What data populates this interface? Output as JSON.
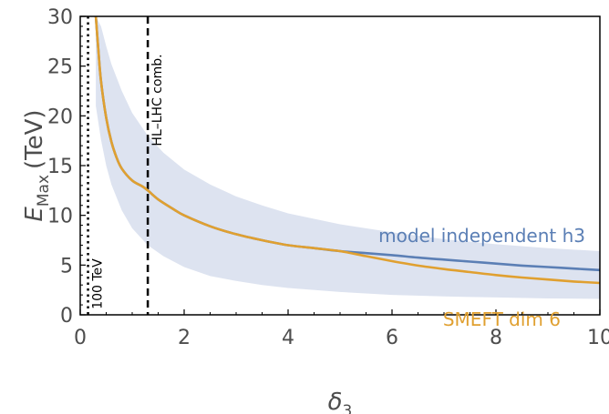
{
  "chart_data": {
    "type": "line",
    "xlabel": "δ3",
    "ylabel": "E_Max (TeV)",
    "ylabel_main": "E",
    "ylabel_sub": "Max",
    "ylabel_unit": "(TeV)",
    "xlabel_main": "δ",
    "xlabel_sub": "3",
    "xlim": [
      0,
      10
    ],
    "ylim": [
      0,
      30
    ],
    "xticks": [
      0,
      2,
      4,
      6,
      8,
      10
    ],
    "yticks": [
      0,
      5,
      10,
      15,
      20,
      25,
      30
    ],
    "grid": false,
    "colors": {
      "model_independent": "#5b7fb5",
      "smeft": "#e0a030",
      "band": "#dde3f0",
      "frame": "#000000",
      "text": "#4d4d4d"
    },
    "band": {
      "x": [
        0.3,
        0.4,
        0.5,
        0.6,
        0.8,
        1.0,
        1.3,
        1.6,
        2.0,
        2.5,
        3.0,
        3.5,
        4.0,
        5.0,
        6.0,
        7.0,
        8.0,
        9.0,
        10.0
      ],
      "upper": [
        30.0,
        29.0,
        27.0,
        25.2,
        22.5,
        20.3,
        18.0,
        16.3,
        14.6,
        13.1,
        11.9,
        11.0,
        10.2,
        9.1,
        8.3,
        7.6,
        7.1,
        6.7,
        6.4
      ],
      "lower": [
        21.0,
        17.6,
        15.0,
        13.1,
        10.5,
        8.7,
        7.0,
        5.9,
        4.8,
        3.9,
        3.4,
        3.0,
        2.7,
        2.3,
        2.0,
        1.85,
        1.75,
        1.65,
        1.6
      ]
    },
    "series": [
      {
        "name": "model independent h3",
        "color": "#5b7fb5",
        "x": [
          0.3,
          0.35,
          0.4,
          0.5,
          0.6,
          0.7,
          0.8,
          1.0,
          1.2,
          1.3,
          1.5,
          1.8,
          2.0,
          2.5,
          3.0,
          3.5,
          4.0,
          4.5,
          5.0,
          5.5,
          6.0,
          6.5,
          7.0,
          7.5,
          8.0,
          8.5,
          9.0,
          9.5,
          10.0
        ],
        "y": [
          30.0,
          26.5,
          23.5,
          19.8,
          17.4,
          15.8,
          14.7,
          13.5,
          12.9,
          12.5,
          11.6,
          10.6,
          10.0,
          8.9,
          8.1,
          7.5,
          7.0,
          6.7,
          6.4,
          6.2,
          6.0,
          5.75,
          5.55,
          5.35,
          5.15,
          4.95,
          4.8,
          4.65,
          4.5
        ]
      },
      {
        "name": "SMEFT dim 6",
        "color": "#e0a030",
        "x": [
          0.3,
          0.35,
          0.4,
          0.5,
          0.6,
          0.7,
          0.8,
          1.0,
          1.2,
          1.3,
          1.5,
          1.8,
          2.0,
          2.5,
          3.0,
          3.5,
          4.0,
          4.5,
          5.0,
          5.5,
          6.0,
          6.5,
          7.0,
          7.5,
          8.0,
          8.5,
          9.0,
          9.5,
          10.0
        ],
        "y": [
          30.0,
          26.5,
          23.5,
          19.8,
          17.4,
          15.8,
          14.7,
          13.5,
          12.9,
          12.5,
          11.6,
          10.6,
          10.0,
          8.9,
          8.1,
          7.5,
          7.0,
          6.7,
          6.4,
          5.9,
          5.4,
          4.95,
          4.6,
          4.3,
          4.0,
          3.75,
          3.55,
          3.35,
          3.2
        ]
      }
    ],
    "vlines": [
      {
        "x": 0.15,
        "label": "100 TeV",
        "style": "dotted"
      },
      {
        "x": 1.3,
        "label": "HL–LHC comb.",
        "style": "dashed"
      }
    ]
  }
}
